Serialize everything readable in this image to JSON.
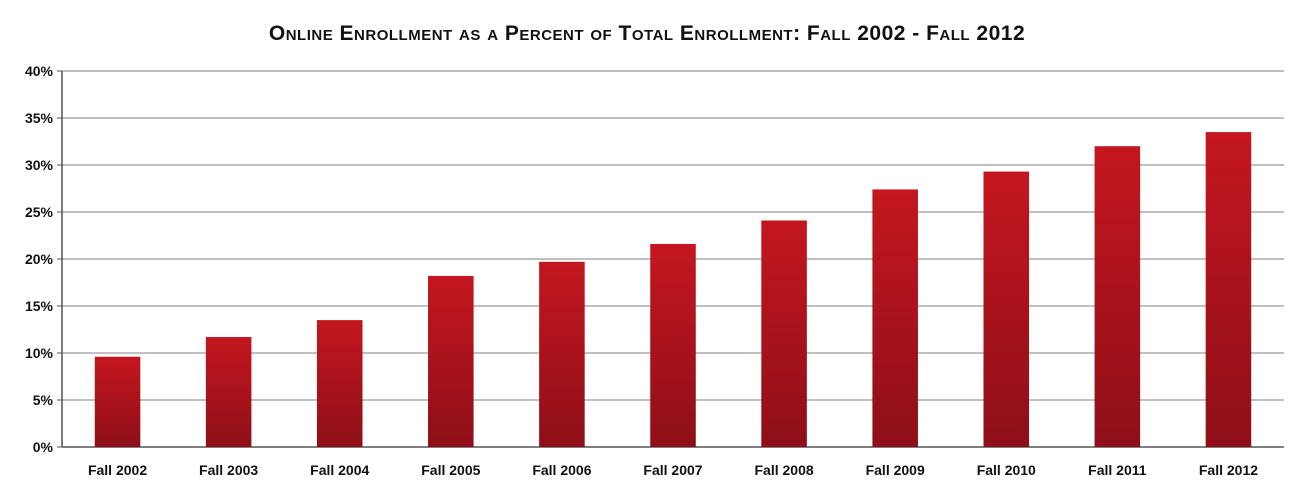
{
  "chart_data": {
    "type": "bar",
    "title": "Online Enrollment as a Percent of Total Enrollment: Fall 2002 - Fall 2012",
    "xlabel": "",
    "ylabel": "",
    "categories": [
      "Fall 2002",
      "Fall 2003",
      "Fall 2004",
      "Fall 2005",
      "Fall 2006",
      "Fall 2007",
      "Fall 2008",
      "Fall 2009",
      "Fall 2010",
      "Fall 2011",
      "Fall 2012"
    ],
    "values": [
      9.6,
      11.7,
      13.5,
      18.2,
      19.7,
      21.6,
      24.1,
      27.4,
      29.3,
      32.0,
      33.5
    ],
    "ylim": [
      0,
      40
    ],
    "yticks": [
      0,
      5,
      10,
      15,
      20,
      25,
      30,
      35,
      40
    ],
    "ytick_labels": [
      "0%",
      "5%",
      "10%",
      "15%",
      "20%",
      "25%",
      "30%",
      "35%",
      "40%"
    ],
    "grid": true,
    "bar_color": "#c4161f",
    "bar_color_dark": "#8e0f18"
  }
}
